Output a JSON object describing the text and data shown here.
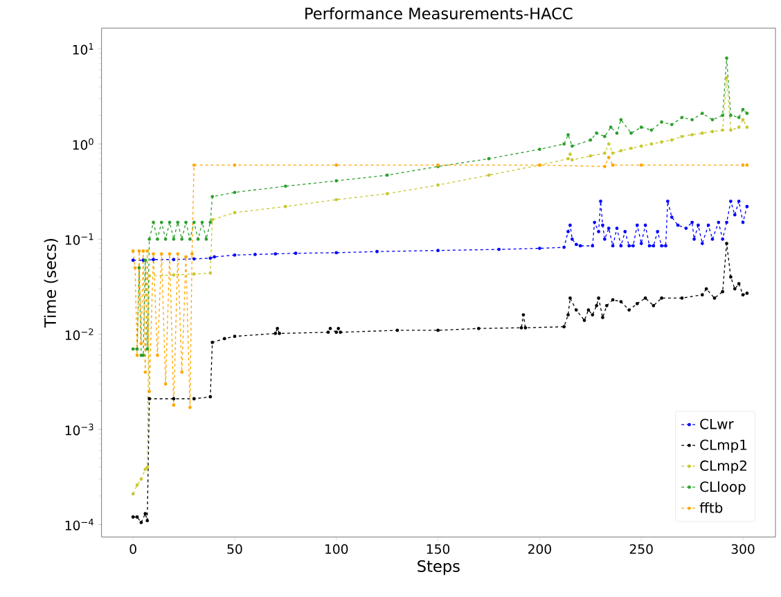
{
  "chart_data": {
    "type": "line",
    "title": "Performance Measurements-HACC",
    "xlabel": "Steps",
    "ylabel": "Time (secs)",
    "log": "y",
    "xlim": [
      -15.5,
      316
    ],
    "xticks": [
      0,
      50,
      100,
      150,
      200,
      250,
      300
    ],
    "ylim": [
      7.4e-05,
      16.5
    ],
    "yticks": [
      {
        "value": 0.0001,
        "label": "10$^{−4}$"
      },
      {
        "value": 0.001,
        "label": "10$^{−3}$"
      },
      {
        "value": 0.01,
        "label": "10$^{−2}$"
      },
      {
        "value": 0.1,
        "label": "10$^{−1}$"
      },
      {
        "value": 1,
        "label": "10$^{0}$"
      },
      {
        "value": 10,
        "label": "10$^{1}$"
      }
    ],
    "grid": false,
    "legend": "bottom right",
    "marker": "circle",
    "line_style": "dashed",
    "series": [
      {
        "name": "CLwr",
        "color": "#0000ff",
        "x": [
          0,
          5,
          10,
          20,
          30,
          38,
          40,
          50,
          60,
          70,
          80,
          100,
          120,
          150,
          180,
          200,
          212,
          214,
          215,
          216,
          218,
          220,
          226,
          227,
          229,
          230,
          231,
          232,
          234,
          236,
          238,
          240,
          242,
          244,
          246,
          248,
          250,
          252,
          254,
          256,
          258,
          260,
          262,
          263,
          265,
          268,
          272,
          275,
          276,
          278,
          280,
          283,
          285,
          288,
          290,
          292,
          294,
          296,
          298,
          300,
          302
        ],
        "values": [
          0.06,
          0.06,
          0.061,
          0.061,
          0.062,
          0.063,
          0.065,
          0.068,
          0.069,
          0.07,
          0.071,
          0.072,
          0.074,
          0.076,
          0.078,
          0.08,
          0.082,
          0.12,
          0.14,
          0.1,
          0.088,
          0.085,
          0.085,
          0.15,
          0.12,
          0.25,
          0.14,
          0.1,
          0.13,
          0.085,
          0.13,
          0.085,
          0.12,
          0.085,
          0.085,
          0.14,
          0.09,
          0.14,
          0.085,
          0.085,
          0.12,
          0.085,
          0.085,
          0.25,
          0.17,
          0.14,
          0.13,
          0.15,
          0.1,
          0.14,
          0.09,
          0.14,
          0.1,
          0.15,
          0.1,
          0.15,
          0.25,
          0.18,
          0.25,
          0.15,
          0.22
        ]
      },
      {
        "name": "CLmp1",
        "color": "#000000",
        "x": [
          0,
          2,
          4,
          6,
          7,
          8,
          20,
          30,
          38,
          39,
          45,
          50,
          70,
          71,
          72,
          96,
          97,
          100,
          101,
          102,
          130,
          150,
          170,
          191,
          192,
          193,
          212,
          214,
          215,
          218,
          222,
          224,
          226,
          228,
          229,
          231,
          233,
          236,
          240,
          244,
          248,
          252,
          256,
          260,
          270,
          280,
          282,
          286,
          290,
          292,
          294,
          296,
          298,
          300,
          302
        ],
        "values": [
          0.00012,
          0.00012,
          0.000105,
          0.00013,
          0.00011,
          0.0021,
          0.0021,
          0.0021,
          0.0022,
          0.0082,
          0.009,
          0.0095,
          0.0102,
          0.0115,
          0.0102,
          0.0105,
          0.0115,
          0.0105,
          0.0115,
          0.0105,
          0.011,
          0.011,
          0.0115,
          0.0117,
          0.016,
          0.0117,
          0.012,
          0.016,
          0.024,
          0.018,
          0.014,
          0.018,
          0.016,
          0.02,
          0.024,
          0.015,
          0.02,
          0.023,
          0.022,
          0.018,
          0.021,
          0.024,
          0.02,
          0.024,
          0.024,
          0.026,
          0.03,
          0.024,
          0.028,
          0.09,
          0.04,
          0.03,
          0.034,
          0.026,
          0.027
        ]
      },
      {
        "name": "CLmp2",
        "color": "#c8c832",
        "x": [
          0,
          2,
          4,
          6,
          7,
          8,
          20,
          30,
          38,
          39,
          50,
          75,
          100,
          125,
          150,
          175,
          200,
          214,
          215,
          216,
          225,
          232,
          234,
          236,
          240,
          245,
          250,
          255,
          260,
          265,
          270,
          275,
          280,
          285,
          290,
          292,
          294,
          298,
          300,
          302
        ],
        "values": [
          0.00021,
          0.00026,
          0.0003,
          0.00038,
          0.0004,
          0.041,
          0.042,
          0.043,
          0.044,
          0.16,
          0.19,
          0.22,
          0.26,
          0.3,
          0.37,
          0.47,
          0.6,
          0.7,
          0.78,
          0.68,
          0.75,
          0.8,
          1.0,
          0.8,
          0.85,
          0.9,
          0.95,
          1.0,
          1.05,
          1.1,
          1.2,
          1.25,
          1.3,
          1.35,
          1.4,
          5.0,
          1.4,
          1.5,
          1.8,
          1.5
        ]
      },
      {
        "name": "CLloop",
        "color": "#2ca02c",
        "x": [
          0,
          2,
          3,
          4,
          5,
          6,
          7,
          8,
          10,
          12,
          14,
          16,
          18,
          20,
          22,
          24,
          26,
          28,
          30,
          32,
          34,
          36,
          38,
          39,
          50,
          75,
          100,
          125,
          150,
          175,
          200,
          212,
          214,
          216,
          225,
          228,
          232,
          235,
          238,
          240,
          245,
          250,
          255,
          260,
          265,
          270,
          275,
          280,
          285,
          290,
          292,
          294,
          298,
          300,
          302
        ],
        "values": [
          0.007,
          0.007,
          0.05,
          0.006,
          0.006,
          0.06,
          0.007,
          0.1,
          0.15,
          0.1,
          0.15,
          0.1,
          0.15,
          0.1,
          0.15,
          0.1,
          0.15,
          0.1,
          0.15,
          0.1,
          0.15,
          0.1,
          0.15,
          0.28,
          0.31,
          0.36,
          0.41,
          0.47,
          0.58,
          0.7,
          0.88,
          1.0,
          1.25,
          0.95,
          1.1,
          1.3,
          1.2,
          1.5,
          1.3,
          1.8,
          1.3,
          1.5,
          1.4,
          1.7,
          1.6,
          1.9,
          1.8,
          2.1,
          1.8,
          2.0,
          8.0,
          2.0,
          1.9,
          2.3,
          2.1
        ]
      },
      {
        "name": "fftb",
        "color": "#ffa500",
        "x": [
          0,
          1,
          2,
          3,
          4,
          5,
          6,
          7,
          8,
          10,
          12,
          14,
          16,
          18,
          20,
          22,
          24,
          26,
          28,
          29,
          30,
          50,
          100,
          150,
          200,
          232,
          234,
          236,
          250,
          300,
          302
        ],
        "values": [
          0.075,
          0.05,
          0.006,
          0.075,
          0.008,
          0.075,
          0.004,
          0.075,
          0.0025,
          0.07,
          0.006,
          0.07,
          0.003,
          0.07,
          0.0018,
          0.07,
          0.004,
          0.065,
          0.0017,
          0.07,
          0.6,
          0.6,
          0.6,
          0.6,
          0.6,
          0.58,
          0.72,
          0.6,
          0.6,
          0.6,
          0.6
        ]
      }
    ]
  }
}
